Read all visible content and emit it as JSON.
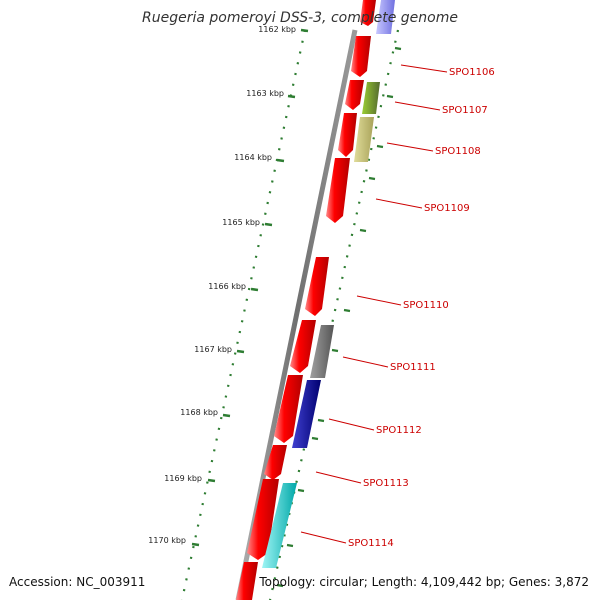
{
  "title": "Ruegeria pomeroyi DSS-3, complete genome",
  "footer": {
    "accession": "Accession: NC_003911",
    "topology": "Topology: circular; Length: 4,109,442 bp; Genes: 3,872"
  },
  "kbp_ticks": [
    {
      "label": "1162 kbp"
    },
    {
      "label": "1163 kbp"
    },
    {
      "label": "1164 kbp"
    },
    {
      "label": "1165 kbp"
    },
    {
      "label": "1166 kbp"
    },
    {
      "label": "1167 kbp"
    },
    {
      "label": "1168 kbp"
    },
    {
      "label": "1169 kbp"
    },
    {
      "label": "1170 kbp"
    }
  ],
  "gene_labels": [
    "SPO1106",
    "SPO1107",
    "SPO1108",
    "SPO1109",
    "SPO1110",
    "SPO1111",
    "SPO1112",
    "SPO1113",
    "SPO1114"
  ],
  "colors": {
    "backbone": "#808080",
    "gene_red": "#ff0000",
    "label_red": "#cc0000",
    "tick_green": "#2e7d32",
    "olive": "#6b8e23",
    "khaki": "#bdb76b",
    "gray": "#696969",
    "navy": "#00008b",
    "cyan": "#00cccc",
    "lavender": "#8080ee"
  }
}
